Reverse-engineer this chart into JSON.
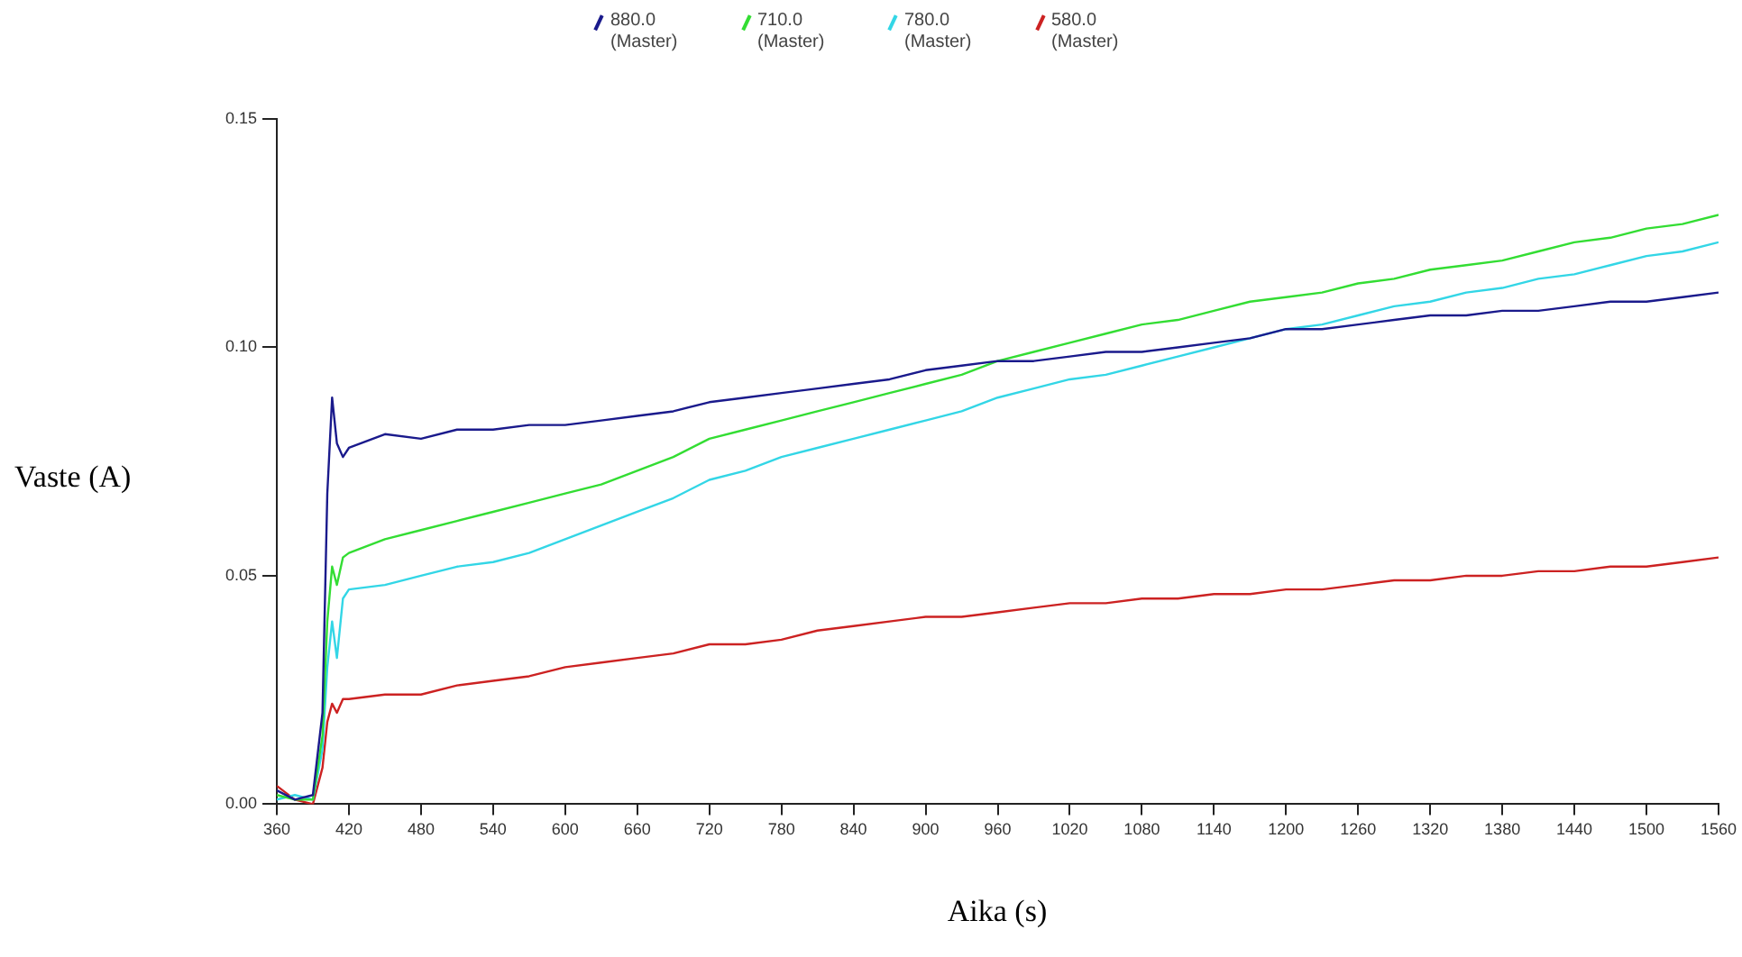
{
  "chart_data": {
    "type": "line",
    "xlabel": "Aika (s)",
    "ylabel": "Vaste (A)",
    "x": [
      360,
      375,
      390,
      398,
      402,
      406,
      410,
      415,
      420,
      450,
      480,
      510,
      540,
      570,
      600,
      630,
      660,
      690,
      720,
      750,
      780,
      810,
      840,
      870,
      900,
      930,
      960,
      990,
      1020,
      1050,
      1080,
      1110,
      1140,
      1170,
      1200,
      1230,
      1260,
      1290,
      1320,
      1350,
      1380,
      1410,
      1440,
      1470,
      1500,
      1530,
      1560
    ],
    "series": [
      {
        "name": "880.0 (Master)",
        "color": "#1a1a8c",
        "values": [
          0.003,
          0.001,
          0.002,
          0.02,
          0.068,
          0.089,
          0.079,
          0.076,
          0.078,
          0.081,
          0.08,
          0.082,
          0.082,
          0.083,
          0.083,
          0.084,
          0.085,
          0.086,
          0.088,
          0.089,
          0.09,
          0.091,
          0.092,
          0.093,
          0.095,
          0.096,
          0.097,
          0.097,
          0.098,
          0.099,
          0.099,
          0.1,
          0.101,
          0.102,
          0.104,
          0.104,
          0.105,
          0.106,
          0.107,
          0.107,
          0.108,
          0.108,
          0.109,
          0.11,
          0.11,
          0.111,
          0.112
        ]
      },
      {
        "name": "710.0 (Master)",
        "color": "#33dd33",
        "values": [
          0.002,
          0.001,
          0.001,
          0.015,
          0.04,
          0.052,
          0.048,
          0.054,
          0.055,
          0.058,
          0.06,
          0.062,
          0.064,
          0.066,
          0.068,
          0.07,
          0.073,
          0.076,
          0.08,
          0.082,
          0.084,
          0.086,
          0.088,
          0.09,
          0.092,
          0.094,
          0.097,
          0.099,
          0.101,
          0.103,
          0.105,
          0.106,
          0.108,
          0.11,
          0.111,
          0.112,
          0.114,
          0.115,
          0.117,
          0.118,
          0.119,
          0.121,
          0.123,
          0.124,
          0.126,
          0.127,
          0.129
        ]
      },
      {
        "name": "780.0 (Master)",
        "color": "#33d6e6",
        "values": [
          0.001,
          0.002,
          0.001,
          0.012,
          0.03,
          0.04,
          0.032,
          0.045,
          0.047,
          0.048,
          0.05,
          0.052,
          0.053,
          0.055,
          0.058,
          0.061,
          0.064,
          0.067,
          0.071,
          0.073,
          0.076,
          0.078,
          0.08,
          0.082,
          0.084,
          0.086,
          0.089,
          0.091,
          0.093,
          0.094,
          0.096,
          0.098,
          0.1,
          0.102,
          0.104,
          0.105,
          0.107,
          0.109,
          0.11,
          0.112,
          0.113,
          0.115,
          0.116,
          0.118,
          0.12,
          0.121,
          0.123
        ]
      },
      {
        "name": "580.0 (Master)",
        "color": "#cc2222",
        "values": [
          0.004,
          0.001,
          0.0,
          0.008,
          0.018,
          0.022,
          0.02,
          0.023,
          0.023,
          0.024,
          0.024,
          0.026,
          0.027,
          0.028,
          0.03,
          0.031,
          0.032,
          0.033,
          0.035,
          0.035,
          0.036,
          0.038,
          0.039,
          0.04,
          0.041,
          0.041,
          0.042,
          0.043,
          0.044,
          0.044,
          0.045,
          0.045,
          0.046,
          0.046,
          0.047,
          0.047,
          0.048,
          0.049,
          0.049,
          0.05,
          0.05,
          0.051,
          0.051,
          0.052,
          0.052,
          0.053,
          0.054
        ]
      }
    ],
    "xlim": [
      360,
      1560
    ],
    "xticks": [
      360,
      420,
      480,
      540,
      600,
      660,
      720,
      780,
      840,
      900,
      960,
      1020,
      1080,
      1140,
      1200,
      1260,
      1320,
      1380,
      1440,
      1500,
      1560
    ],
    "ylim": [
      0,
      0.15
    ],
    "yticks": [
      {
        "value": 0,
        "label": "0.00"
      },
      0.05,
      {
        "value": 0.1,
        "label": "0.10"
      },
      0.15
    ],
    "grid": false,
    "legend": "top",
    "marker": "none",
    "line_style": "solid"
  }
}
